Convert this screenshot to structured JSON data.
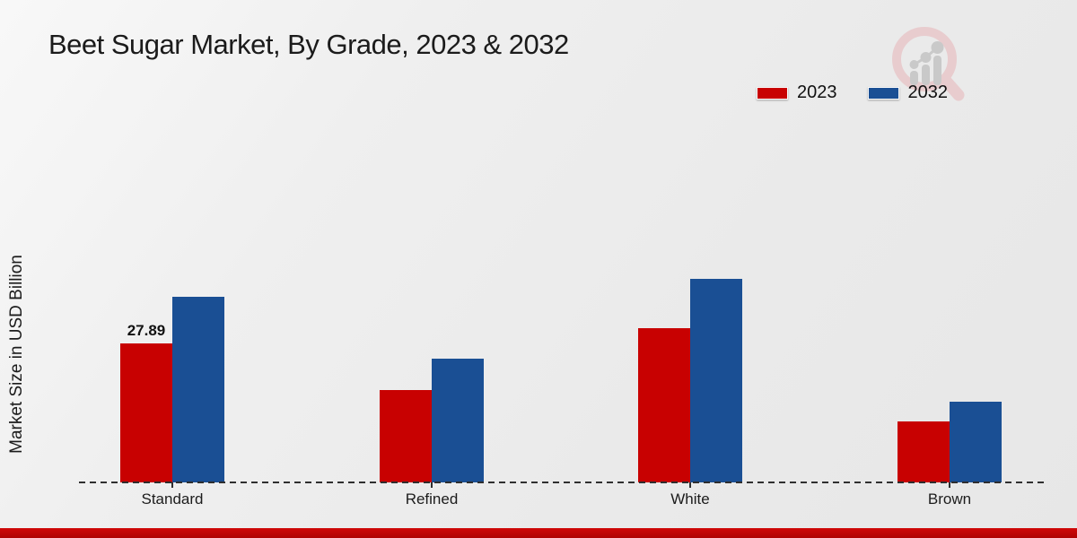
{
  "title": "Beet Sugar Market, By Grade, 2023 & 2032",
  "ylabel": "Market Size in USD Billion",
  "colors": {
    "series_2023": "#C80101",
    "series_2032": "#1A4F94",
    "footer_bar": "#C00000",
    "axis": "#2F2F2F",
    "background": "#ECECEC"
  },
  "watermark": {
    "icon": "magnifier-growth-chart-logo"
  },
  "chart_data": {
    "type": "bar",
    "categories": [
      "Standard",
      "Refined",
      "White",
      "Brown"
    ],
    "series": [
      {
        "name": "2023",
        "color": "#C80101",
        "values": [
          27.89,
          18.5,
          31.0,
          12.2
        ],
        "labels": [
          "27.89",
          "",
          "",
          ""
        ]
      },
      {
        "name": "2032",
        "color": "#1A4F94",
        "values": [
          37.3,
          24.8,
          40.9,
          16.2
        ],
        "labels": [
          "",
          "",
          "",
          ""
        ]
      }
    ],
    "title": "Beet Sugar Market, By Grade, 2023 & 2032",
    "xlabel": "",
    "ylabel": "Market Size in USD Billion",
    "ylim": [
      0,
      45
    ],
    "grid": false,
    "legend_position": "top-right",
    "baseline_style": "dashed",
    "y_axis_ticks_visible": false,
    "data_label_note": "only Standard 2023 bar is labeled"
  }
}
